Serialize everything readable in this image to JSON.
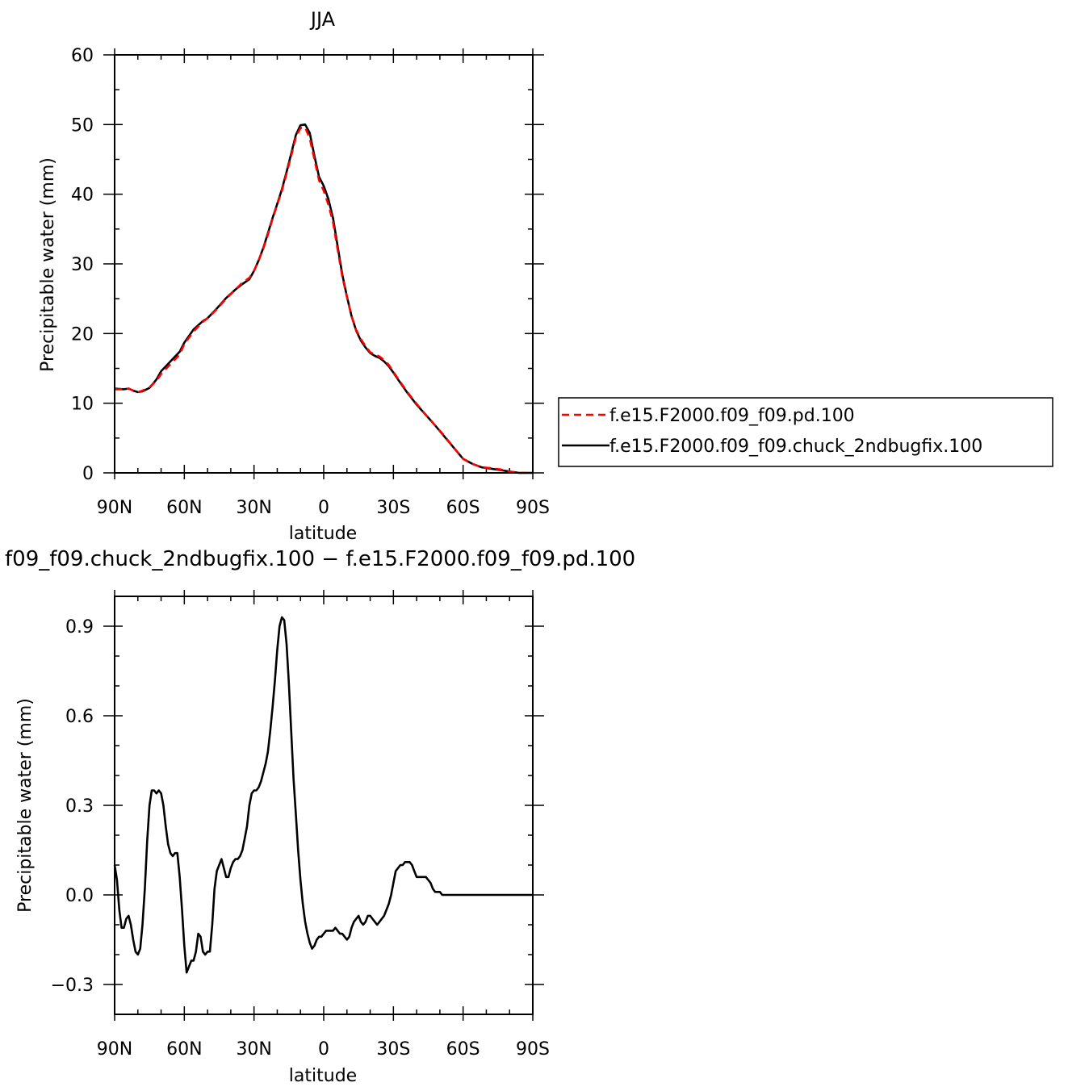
{
  "chart_data": [
    {
      "type": "line",
      "title": "JJA",
      "xlabel": "latitude",
      "ylabel": "Precipitable water (mm)",
      "xlim": [
        90,
        -90
      ],
      "ylim": [
        0,
        60
      ],
      "x_ticks": [
        90,
        60,
        30,
        0,
        -30,
        -60,
        -90
      ],
      "x_tick_labels": [
        "90N",
        "60N",
        "30N",
        "0",
        "30S",
        "60S",
        "90S"
      ],
      "y_ticks": [
        0,
        10,
        20,
        30,
        40,
        50,
        60
      ],
      "y_tick_labels": [
        "0",
        "10",
        "20",
        "30",
        "40",
        "50",
        "60"
      ],
      "legend_position": "right, outside plot",
      "series": [
        {
          "name": "f.e15.F2000.f09_f09.pd.100",
          "color": "#ff0000",
          "dash": "dashed",
          "x": [
            90,
            86,
            84,
            82,
            80,
            78,
            75,
            72,
            70,
            66,
            62,
            60,
            56,
            52,
            50,
            46,
            42,
            38,
            35,
            32,
            30,
            28,
            26,
            24,
            22,
            20,
            18,
            16,
            14,
            12,
            10,
            8,
            6,
            4,
            2,
            0,
            -2,
            -4,
            -6,
            -8,
            -10,
            -12,
            -14,
            -16,
            -18,
            -20,
            -22,
            -24,
            -26,
            -28,
            -30,
            -32,
            -36,
            -40,
            -44,
            -48,
            -52,
            -56,
            -60,
            -64,
            -68,
            -72,
            -76,
            -80,
            -84,
            -88,
            -90
          ],
          "values": [
            12.0,
            12.0,
            12.1,
            11.8,
            11.6,
            11.8,
            12.3,
            13.2,
            14.2,
            15.6,
            17.0,
            18.5,
            20.3,
            21.7,
            22.2,
            23.5,
            25.0,
            26.3,
            27.3,
            28.0,
            29.0,
            30.5,
            32.2,
            34.2,
            36.5,
            38.5,
            40.5,
            43.0,
            45.5,
            48.2,
            49.5,
            49.6,
            48.0,
            45.0,
            42.0,
            40.5,
            38.5,
            36.0,
            32.0,
            28.2,
            25.2,
            22.5,
            20.5,
            19.2,
            18.2,
            17.3,
            17.0,
            16.7,
            16.2,
            15.5,
            14.5,
            13.5,
            11.6,
            9.9,
            8.3,
            6.8,
            5.3,
            3.6,
            2.0,
            1.3,
            0.8,
            0.7,
            0.5,
            0.2,
            0.0,
            -0.1,
            -0.1
          ]
        },
        {
          "name": "f.e15.F2000.f09_f09.chuck_2ndbugfix.100",
          "color": "#000000",
          "dash": "solid",
          "x": [
            90,
            86,
            84,
            82,
            80,
            78,
            75,
            72,
            70,
            66,
            62,
            60,
            56,
            52,
            50,
            46,
            42,
            38,
            35,
            32,
            30,
            28,
            26,
            24,
            22,
            20,
            18,
            16,
            14,
            12,
            10,
            8,
            6,
            4,
            2,
            0,
            -2,
            -4,
            -6,
            -8,
            -10,
            -12,
            -14,
            -16,
            -18,
            -20,
            -22,
            -24,
            -26,
            -28,
            -30,
            -32,
            -36,
            -40,
            -44,
            -48,
            -52,
            -56,
            -60,
            -64,
            -68,
            -72,
            -76,
            -80,
            -84,
            -88,
            -90
          ],
          "values": [
            12.1,
            12.0,
            12.1,
            11.8,
            11.6,
            11.7,
            12.2,
            13.4,
            14.6,
            16.0,
            17.4,
            18.7,
            20.6,
            21.8,
            22.2,
            23.6,
            25.1,
            26.3,
            27.1,
            27.8,
            29.0,
            30.5,
            32.3,
            34.4,
            36.6,
            38.6,
            40.7,
            43.2,
            45.8,
            48.5,
            49.9,
            50.0,
            48.8,
            45.5,
            42.5,
            41.2,
            39.3,
            36.6,
            32.5,
            28.5,
            25.3,
            22.5,
            20.4,
            19.0,
            18.0,
            17.2,
            16.8,
            16.5,
            16.0,
            15.3,
            14.4,
            13.4,
            11.5,
            9.8,
            8.3,
            6.8,
            5.2,
            3.6,
            2.0,
            1.3,
            0.8,
            0.6,
            0.4,
            0.2,
            0.0,
            -0.1,
            -0.1
          ]
        }
      ]
    },
    {
      "type": "line",
      "title": "f09_f09.chuck_2ndbugfix.100 − f.e15.F2000.f09_f09.pd.100",
      "xlabel": "latitude",
      "ylabel": "Precipitable water (mm)",
      "xlim": [
        90,
        -90
      ],
      "ylim": [
        -0.4,
        1.0
      ],
      "x_ticks": [
        90,
        60,
        30,
        0,
        -30,
        -60,
        -90
      ],
      "x_tick_labels": [
        "90N",
        "60N",
        "30N",
        "0",
        "30S",
        "60S",
        "90S"
      ],
      "y_ticks": [
        -0.3,
        0.0,
        0.3,
        0.6,
        0.9
      ],
      "y_tick_labels": [
        "−0.3",
        "0.0",
        "0.3",
        "0.6",
        "0.9"
      ],
      "series": [
        {
          "name": "",
          "color": "#000000",
          "dash": "solid",
          "x": [
            90,
            89,
            88,
            87,
            86,
            85,
            84,
            83,
            82,
            81,
            80,
            79,
            78,
            77,
            76,
            75,
            74,
            73,
            72,
            71,
            70,
            69,
            68,
            67,
            66,
            65,
            64,
            63,
            62,
            61,
            60,
            59,
            58,
            57,
            56,
            55,
            54,
            53,
            52,
            51,
            50,
            49,
            48,
            47,
            46,
            45,
            44,
            43,
            42,
            41,
            40,
            39,
            38,
            37,
            36,
            35,
            34,
            33,
            32,
            31,
            30,
            29,
            28,
            27,
            26,
            25,
            24,
            23,
            22,
            21,
            20,
            19,
            18,
            17,
            16,
            15,
            14,
            13,
            12,
            11,
            10,
            9,
            8,
            7,
            6,
            5,
            4,
            3,
            2,
            1,
            0,
            -1,
            -2,
            -3,
            -4,
            -5,
            -6,
            -7,
            -8,
            -9,
            -10,
            -11,
            -12,
            -13,
            -14,
            -15,
            -16,
            -17,
            -18,
            -19,
            -20,
            -21,
            -22,
            -23,
            -24,
            -25,
            -26,
            -27,
            -28,
            -29,
            -30,
            -31,
            -32,
            -33,
            -34,
            -35,
            -36,
            -37,
            -38,
            -39,
            -40,
            -41,
            -42,
            -43,
            -44,
            -45,
            -46,
            -47,
            -48,
            -49,
            -50,
            -51,
            -52,
            -53,
            -54,
            -55,
            -56,
            -57,
            -58,
            -59,
            -60,
            -61,
            -62,
            -63,
            -64,
            -65,
            -66,
            -67,
            -68,
            -69,
            -70,
            -71,
            -72,
            -73,
            -74,
            -75,
            -76,
            -77,
            -78,
            -79,
            -80,
            -81,
            -82,
            -83,
            -84,
            -85,
            -86,
            -87,
            -88,
            -89,
            -90
          ],
          "values": [
            0.1,
            0.05,
            -0.05,
            -0.11,
            -0.11,
            -0.08,
            -0.07,
            -0.1,
            -0.15,
            -0.19,
            -0.2,
            -0.18,
            -0.1,
            0.02,
            0.18,
            0.3,
            0.35,
            0.35,
            0.34,
            0.35,
            0.34,
            0.3,
            0.23,
            0.17,
            0.14,
            0.13,
            0.14,
            0.14,
            0.06,
            -0.05,
            -0.17,
            -0.26,
            -0.24,
            -0.22,
            -0.22,
            -0.19,
            -0.13,
            -0.14,
            -0.19,
            -0.2,
            -0.19,
            -0.19,
            -0.1,
            0.02,
            0.08,
            0.1,
            0.12,
            0.09,
            0.06,
            0.06,
            0.09,
            0.11,
            0.12,
            0.12,
            0.13,
            0.15,
            0.19,
            0.23,
            0.3,
            0.34,
            0.35,
            0.35,
            0.36,
            0.38,
            0.41,
            0.44,
            0.48,
            0.55,
            0.63,
            0.72,
            0.82,
            0.9,
            0.93,
            0.92,
            0.84,
            0.71,
            0.55,
            0.39,
            0.27,
            0.15,
            0.05,
            -0.03,
            -0.09,
            -0.13,
            -0.16,
            -0.18,
            -0.17,
            -0.15,
            -0.14,
            -0.14,
            -0.13,
            -0.12,
            -0.12,
            -0.12,
            -0.12,
            -0.11,
            -0.12,
            -0.13,
            -0.13,
            -0.14,
            -0.15,
            -0.14,
            -0.11,
            -0.09,
            -0.08,
            -0.07,
            -0.09,
            -0.1,
            -0.09,
            -0.07,
            -0.07,
            -0.08,
            -0.09,
            -0.1,
            -0.09,
            -0.08,
            -0.07,
            -0.05,
            -0.03,
            0.0,
            0.04,
            0.08,
            0.09,
            0.1,
            0.1,
            0.11,
            0.11,
            0.11,
            0.1,
            0.08,
            0.06,
            0.06,
            0.06,
            0.06,
            0.06,
            0.05,
            0.04,
            0.02,
            0.01,
            0.01,
            0.01,
            0.0,
            0.0,
            0.0,
            0.0,
            0.0,
            0.0,
            0.0,
            0.0,
            0.0,
            0.0,
            0.0,
            0.0,
            0.0,
            0.0,
            0.0,
            0.0,
            0.0,
            0.0,
            0.0,
            0.0,
            0.0,
            0.0,
            0.0,
            0.0,
            0.0,
            0.0,
            0.0,
            0.0,
            0.0,
            0.0,
            0.0,
            0.0,
            0.0,
            0.0,
            0.0,
            0.0,
            0.0,
            0.0,
            0.0,
            0.0
          ]
        }
      ]
    }
  ]
}
